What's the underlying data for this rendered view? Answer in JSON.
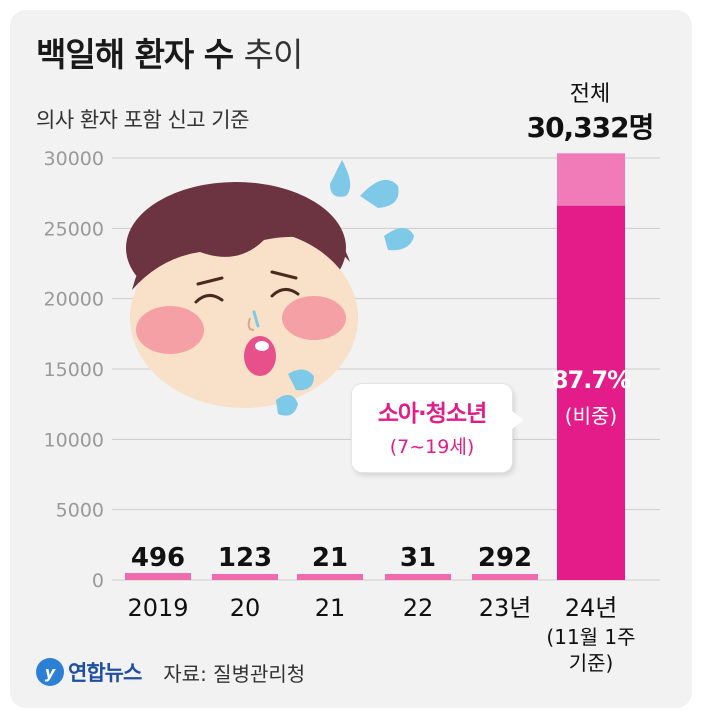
{
  "title": {
    "bold": "백일해 환자 수",
    "light": "추이"
  },
  "subtitle": "의사 환자 포함 신고 기준",
  "total": {
    "label": "전체",
    "value": "30,332명"
  },
  "callout": {
    "label": "소아·청소년",
    "range": "(7~19세)"
  },
  "share": {
    "value": "87.7%",
    "label": "(비중)"
  },
  "footer": {
    "logo_mark": "y",
    "logo_text": "연합뉴스",
    "source": "자료: 질병관리청"
  },
  "colors": {
    "bar_pink": "#f06aae",
    "bar_magenta": "#e31c89",
    "bar_light": "#f17ab8",
    "grid": "#cccccc",
    "axis_text": "#9a9a9a"
  },
  "chart_data": {
    "type": "bar",
    "categories": [
      "2019",
      "20",
      "21",
      "22",
      "23년",
      "24년"
    ],
    "category_sublabel": "(11월 1주\n기준)",
    "values": [
      496,
      123,
      21,
      31,
      292,
      30332
    ],
    "value_labels": [
      "496",
      "123",
      "21",
      "31",
      "292",
      ""
    ],
    "highlight": {
      "category": "24년",
      "child_teen_value": 26601,
      "child_teen_share": "87.7%"
    },
    "ylim": [
      0,
      30000
    ],
    "yticks": [
      0,
      5000,
      10000,
      15000,
      20000,
      25000,
      30000
    ],
    "grid": true
  }
}
